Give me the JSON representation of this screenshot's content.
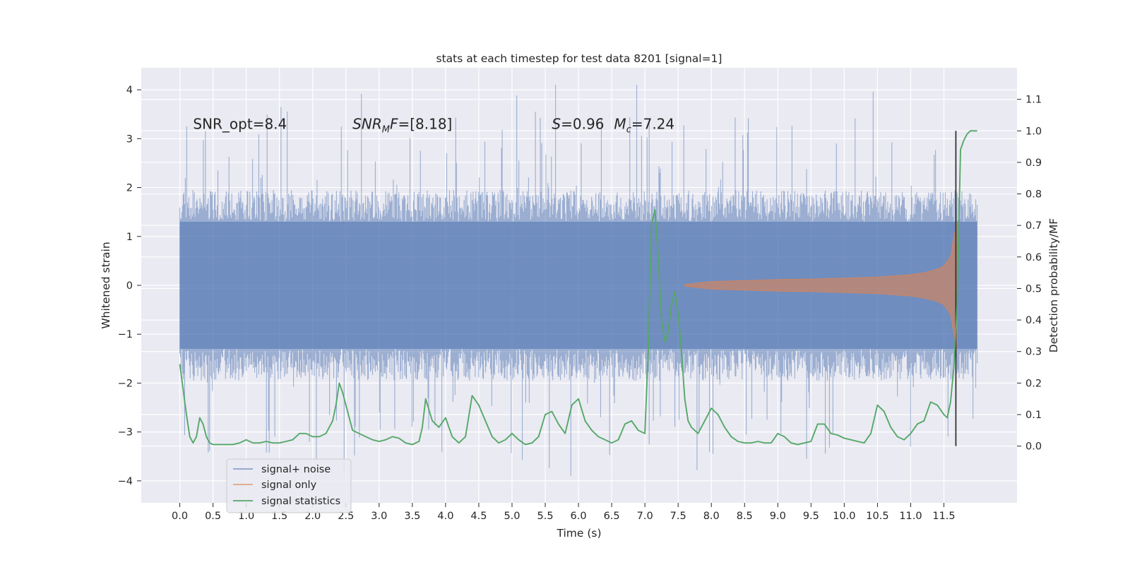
{
  "chart_data": {
    "type": "line",
    "title": "stats at each timestep for test data 8201 [signal=1]",
    "xlabel": "Time (s)",
    "ylabel": "Whitened strain",
    "y2label": "Detection probability/MF",
    "xlim": [
      -0.58,
      12.6
    ],
    "ylim": [
      -4.45,
      4.45
    ],
    "y2lim": [
      -0.18,
      1.2
    ],
    "xticks": [
      0.0,
      0.5,
      1.0,
      1.5,
      2.0,
      2.5,
      3.0,
      3.5,
      4.0,
      4.5,
      5.0,
      5.5,
      6.0,
      6.5,
      7.0,
      7.5,
      8.0,
      8.5,
      9.0,
      9.5,
      10.0,
      10.5,
      11.0,
      11.5
    ],
    "xtick_labels": [
      "0.0",
      "0.5",
      "1.0",
      "1.5",
      "2.0",
      "2.5",
      "3.0",
      "3.5",
      "4.0",
      "4.5",
      "5.0",
      "5.5",
      "6.0",
      "6.5",
      "7.0",
      "7.5",
      "8.0",
      "8.5",
      "9.0",
      "9.5",
      "10.0",
      "10.5",
      "11.0",
      "11.5"
    ],
    "yticks": [
      4,
      3,
      2,
      1,
      0,
      -1,
      -2,
      -3,
      -4
    ],
    "ytick_labels": [
      "4",
      "3",
      "2",
      "1",
      "0",
      "−1",
      "−2",
      "−3",
      "−4"
    ],
    "y2ticks": [
      1.1,
      1.0,
      0.9,
      0.8,
      0.7,
      0.6,
      0.5,
      0.4,
      0.3,
      0.2,
      0.1,
      0.0
    ],
    "y2tick_labels": [
      "1.1",
      "1.0",
      "0.9",
      "0.8",
      "0.7",
      "0.6",
      "0.5",
      "0.4",
      "0.3",
      "0.2",
      "0.1",
      "0.0"
    ],
    "grid": true,
    "legend_position": "bottom-left",
    "noise_band": {
      "t_start": 0.0,
      "t_end": 12.0,
      "core_amplitude": 1.3,
      "typical_peak": 2.0,
      "max_peak": 4.1,
      "min_trough": -3.9
    },
    "chirp_envelope": {
      "t": [
        7.6,
        8.0,
        8.5,
        9.0,
        9.5,
        10.0,
        10.5,
        11.0,
        11.2,
        11.4,
        11.5,
        11.6,
        11.65,
        11.7
      ],
      "amplitude": [
        0.02,
        0.08,
        0.1,
        0.12,
        0.13,
        0.15,
        0.17,
        0.22,
        0.26,
        0.33,
        0.4,
        0.6,
        1.0,
        1.3
      ]
    },
    "event_marker": {
      "t": 11.68,
      "y2_range": [
        0.0,
        1.0
      ]
    },
    "annotations": [
      {
        "key": "snr_opt",
        "text": "SNR_opt=8.4",
        "t": 0.2,
        "y": 3.2
      },
      {
        "key": "snr_mf",
        "prefix": "SNR",
        "sub": "M",
        "suffix": "F=[8.18]",
        "t": 2.6,
        "y": 3.2
      },
      {
        "key": "s_mc",
        "s_label": "S",
        "s_value": "=0.96",
        "m_label": "M",
        "m_sub": "c",
        "m_value": "=7.24",
        "t": 5.6,
        "y": 3.2
      }
    ],
    "series": [
      {
        "name": "signal+ noise",
        "color": "#4c72b0",
        "opacity": 0.5
      },
      {
        "name": "signal only",
        "color": "#dd8452",
        "opacity": 0.6
      },
      {
        "name": "signal statistics",
        "color": "#55a868",
        "t": [
          0.0,
          0.1,
          0.15,
          0.2,
          0.25,
          0.3,
          0.35,
          0.4,
          0.45,
          0.5,
          0.6,
          0.7,
          0.8,
          0.9,
          1.0,
          1.1,
          1.2,
          1.3,
          1.4,
          1.5,
          1.6,
          1.7,
          1.8,
          1.9,
          2.0,
          2.1,
          2.2,
          2.3,
          2.35,
          2.4,
          2.45,
          2.5,
          2.55,
          2.6,
          2.7,
          2.8,
          2.9,
          3.0,
          3.1,
          3.2,
          3.3,
          3.4,
          3.5,
          3.6,
          3.65,
          3.7,
          3.8,
          3.9,
          4.0,
          4.1,
          4.2,
          4.3,
          4.4,
          4.5,
          4.6,
          4.7,
          4.8,
          4.9,
          5.0,
          5.1,
          5.2,
          5.3,
          5.4,
          5.5,
          5.6,
          5.7,
          5.8,
          5.9,
          6.0,
          6.1,
          6.2,
          6.3,
          6.4,
          6.5,
          6.6,
          6.7,
          6.8,
          6.9,
          7.0,
          7.05,
          7.1,
          7.15,
          7.2,
          7.25,
          7.3,
          7.35,
          7.4,
          7.45,
          7.5,
          7.55,
          7.6,
          7.65,
          7.7,
          7.8,
          7.9,
          8.0,
          8.1,
          8.2,
          8.3,
          8.4,
          8.5,
          8.6,
          8.7,
          8.8,
          8.9,
          9.0,
          9.1,
          9.2,
          9.3,
          9.4,
          9.5,
          9.6,
          9.7,
          9.8,
          9.9,
          10.0,
          10.1,
          10.2,
          10.3,
          10.4,
          10.5,
          10.6,
          10.7,
          10.8,
          10.9,
          11.0,
          11.1,
          11.2,
          11.3,
          11.4,
          11.5,
          11.55,
          11.6,
          11.65,
          11.7,
          11.75,
          11.8,
          11.85,
          11.9,
          11.95,
          12.0
        ],
        "values": [
          0.26,
          0.1,
          0.03,
          0.01,
          0.03,
          0.09,
          0.07,
          0.03,
          0.01,
          0.005,
          0.005,
          0.005,
          0.005,
          0.01,
          0.02,
          0.01,
          0.01,
          0.015,
          0.01,
          0.01,
          0.015,
          0.02,
          0.04,
          0.04,
          0.03,
          0.03,
          0.04,
          0.08,
          0.13,
          0.2,
          0.17,
          0.13,
          0.09,
          0.05,
          0.04,
          0.03,
          0.02,
          0.015,
          0.02,
          0.03,
          0.025,
          0.01,
          0.005,
          0.015,
          0.06,
          0.15,
          0.08,
          0.06,
          0.09,
          0.03,
          0.01,
          0.03,
          0.16,
          0.13,
          0.08,
          0.03,
          0.01,
          0.02,
          0.04,
          0.02,
          0.005,
          0.01,
          0.03,
          0.1,
          0.11,
          0.07,
          0.04,
          0.13,
          0.15,
          0.08,
          0.05,
          0.03,
          0.02,
          0.01,
          0.02,
          0.07,
          0.08,
          0.05,
          0.04,
          0.3,
          0.7,
          0.75,
          0.6,
          0.4,
          0.33,
          0.36,
          0.45,
          0.49,
          0.42,
          0.3,
          0.15,
          0.08,
          0.06,
          0.04,
          0.08,
          0.12,
          0.1,
          0.06,
          0.03,
          0.015,
          0.01,
          0.01,
          0.015,
          0.01,
          0.01,
          0.04,
          0.03,
          0.01,
          0.005,
          0.01,
          0.015,
          0.07,
          0.07,
          0.04,
          0.035,
          0.025,
          0.02,
          0.015,
          0.01,
          0.04,
          0.13,
          0.11,
          0.06,
          0.03,
          0.02,
          0.04,
          0.07,
          0.08,
          0.14,
          0.13,
          0.1,
          0.09,
          0.14,
          0.25,
          0.45,
          0.94,
          0.97,
          0.99,
          1.0,
          1.0,
          1.0
        ]
      }
    ]
  }
}
